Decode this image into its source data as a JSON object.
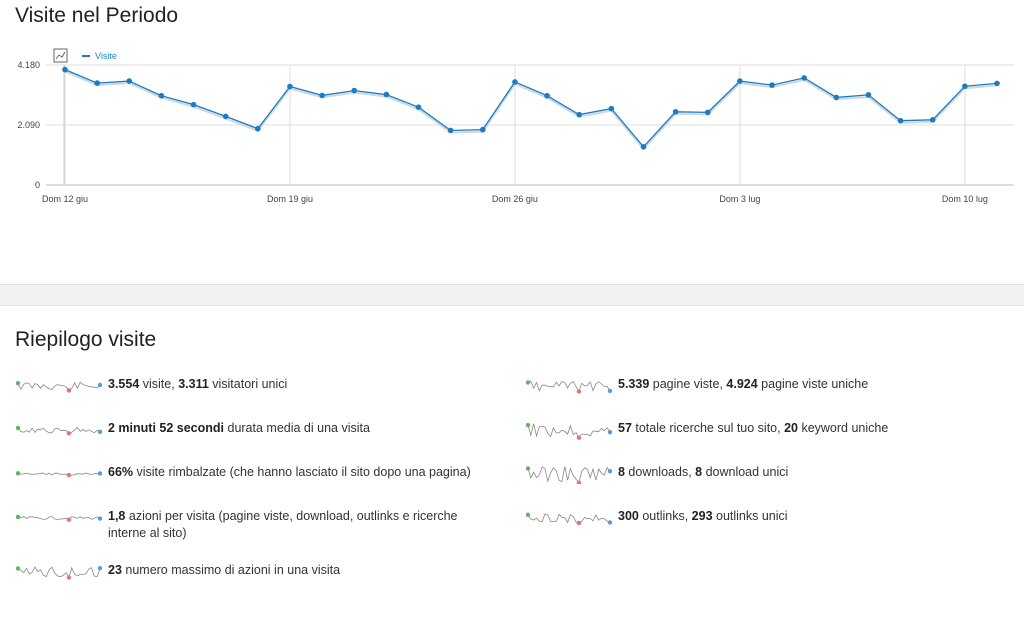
{
  "header": {
    "title": "Visite nel Periodo"
  },
  "chart_data": {
    "type": "line",
    "legend": "Visite",
    "x": [
      "Dom 12 giu",
      "",
      "",
      "",
      "",
      "",
      "",
      "Dom 19 giu",
      "",
      "",
      "",
      "",
      "",
      "",
      "Dom 26 giu",
      "",
      "",
      "",
      "",
      "",
      "",
      "Dom 3 lug",
      "",
      "",
      "",
      "",
      "",
      "",
      "Dom 10 lug",
      ""
    ],
    "x_tick_labels": [
      "Dom 12 giu",
      "Dom 19 giu",
      "Dom 26 giu",
      "Dom 3 lug",
      "Dom 10 lug"
    ],
    "y_tick_labels": [
      "4.180",
      "2.090",
      "0"
    ],
    "ylim": [
      0,
      4180
    ],
    "series": [
      {
        "name": "Visite",
        "values": [
          4020,
          3550,
          3620,
          3110,
          2800,
          2390,
          1960,
          3430,
          3120,
          3290,
          3150,
          2710,
          1900,
          1930,
          3590,
          3110,
          2450,
          2660,
          1330,
          2550,
          2530,
          3620,
          3480,
          3730,
          3050,
          3140,
          2240,
          2270,
          3440,
          3540
        ]
      }
    ],
    "grid": true,
    "line_color": "#1e7bbf"
  },
  "summary": {
    "title": "Riepilogo visite",
    "left": [
      {
        "parts": [
          {
            "b": "3.554"
          },
          {
            "t": " visite, "
          },
          {
            "b": "3.311"
          },
          {
            "t": " visitatori unici"
          }
        ]
      },
      {
        "parts": [
          {
            "b": "2 minuti 52 secondi"
          },
          {
            "t": " durata media di una visita"
          }
        ]
      },
      {
        "parts": [
          {
            "b": "66%"
          },
          {
            "t": " visite rimbalzate (che hanno lasciato il sito dopo una pagina)"
          }
        ]
      },
      {
        "parts": [
          {
            "b": "1,8"
          },
          {
            "t": " azioni per visita (pagine viste, download, outlinks e ricerche interne al sito)"
          }
        ]
      },
      {
        "parts": [
          {
            "b": "23"
          },
          {
            "t": " numero massimo di azioni in una visita"
          }
        ]
      }
    ],
    "right": [
      {
        "parts": [
          {
            "b": "5.339"
          },
          {
            "t": " pagine viste, "
          },
          {
            "b": "4.924"
          },
          {
            "t": " pagine viste uniche"
          }
        ]
      },
      {
        "parts": [
          {
            "b": "57"
          },
          {
            "t": " totale ricerche sul tuo sito, "
          },
          {
            "b": "20"
          },
          {
            "t": " keyword uniche"
          }
        ]
      },
      {
        "parts": [
          {
            "b": "8"
          },
          {
            "t": " downloads, "
          },
          {
            "b": "8"
          },
          {
            "t": " download unici"
          }
        ]
      },
      {
        "parts": [
          {
            "b": "300"
          },
          {
            "t": " outlinks, "
          },
          {
            "b": "293"
          },
          {
            "t": " outlinks unici"
          }
        ]
      }
    ]
  },
  "icons": {
    "chart_type": "chart-type-icon",
    "sparkline_max": "green",
    "sparkline_min": "red",
    "sparkline_last": "blue"
  }
}
